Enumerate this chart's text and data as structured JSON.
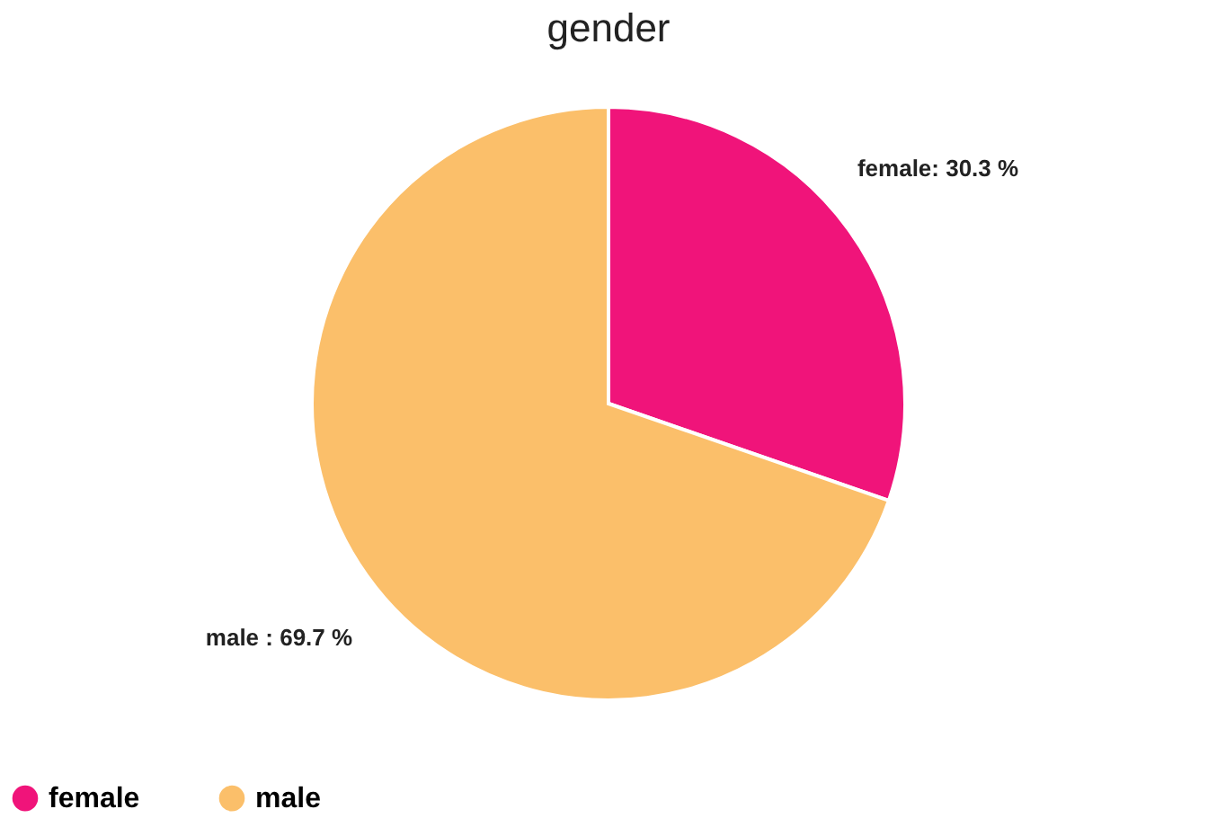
{
  "chart_data": {
    "type": "pie",
    "title": "gender",
    "categories": [
      "female",
      "male"
    ],
    "values": [
      30.3,
      69.7
    ],
    "colors": [
      "#f0147a",
      "#fbbf6a"
    ],
    "value_labels": [
      "female: 30.3 %",
      "male : 69.7 %"
    ],
    "legend": "bottom"
  }
}
